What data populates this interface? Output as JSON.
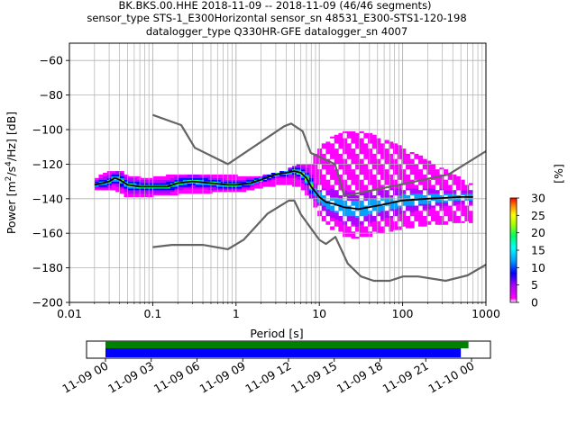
{
  "title": {
    "line1": "BK.BKS.00.HHE   2018-11-09 -- 2018-11-09  (46/46 segments)",
    "line2": "sensor_type STS-1_E300Horizontal sensor_sn 48531_E300-STS1-120-198",
    "line3": "datalogger_type Q330HR-GFE datalogger_sn 4007"
  },
  "chart_data": [
    {
      "type": "heatmap",
      "xlabel": "Period [s]",
      "ylabel": "Power [m²/s⁴/Hz] [dB]",
      "ylabel_parts": {
        "a": "Power [m",
        "b": "2",
        "c": "/s",
        "d": "4",
        "e": "/Hz] [dB]"
      },
      "x_scale": "log",
      "xlim": [
        0.01,
        1000
      ],
      "ylim": [
        -200,
        -50
      ],
      "x_ticks": [
        0.01,
        0.1,
        1,
        10,
        100,
        1000
      ],
      "x_tick_labels": [
        "0.01",
        "0.1",
        "1",
        "10",
        "100",
        "1000"
      ],
      "y_ticks": [
        -200,
        -180,
        -160,
        -140,
        -120,
        -100,
        -80,
        -60
      ],
      "y_tick_labels": [
        "−200",
        "−180",
        "−160",
        "−140",
        "−120",
        "−100",
        "−80",
        "−60"
      ],
      "grid": true,
      "colorbar": {
        "label": "[%]",
        "range": [
          0,
          30
        ],
        "ticks": [
          0,
          5,
          10,
          15,
          20,
          25,
          30
        ],
        "tick_labels": [
          "0",
          "5",
          "10",
          "15",
          "20",
          "25",
          "30"
        ]
      },
      "noise_models": {
        "high": {
          "name": "NHNM",
          "x": [
            0.1,
            0.22,
            0.32,
            0.8,
            3.8,
            4.6,
            6.3,
            7.9,
            15.4,
            20,
            354.8,
            1000
          ],
          "y": [
            -91.5,
            -97.4,
            -110.5,
            -120,
            -98,
            -96.5,
            -101,
            -113.5,
            -120,
            -138.5,
            -126,
            -112.5
          ]
        },
        "low": {
          "name": "NLNM",
          "x": [
            0.1,
            0.17,
            0.4,
            0.8,
            1.24,
            2.4,
            4.3,
            5.0,
            6.0,
            10.0,
            12.0,
            15.6,
            21.9,
            31.6,
            45.0,
            70.0,
            101.0,
            154.0,
            328.0,
            600.0,
            1000.0
          ],
          "y": [
            -168,
            -166.7,
            -166.7,
            -169.2,
            -163.7,
            -148.6,
            -141.1,
            -141.1,
            -149,
            -163.8,
            -166.2,
            -162.1,
            -177.5,
            -185,
            -187.5,
            -187.5,
            -185,
            -185,
            -187.5,
            -184.4,
            -178.2
          ]
        }
      },
      "mode_curve": {
        "name": "mode",
        "x": [
          0.02,
          0.025,
          0.03,
          0.035,
          0.04,
          0.05,
          0.07,
          0.1,
          0.15,
          0.2,
          0.3,
          0.5,
          0.8,
          1.0,
          1.5,
          2.0,
          3.0,
          4.0,
          5.0,
          6.0,
          7.0,
          8.0,
          10.0,
          12.0,
          15.0,
          20.0,
          30.0,
          50.0,
          100.0,
          200.0,
          500.0,
          700.0
        ],
        "y": [
          -132,
          -131,
          -130,
          -128,
          -129,
          -132,
          -133,
          -133,
          -133,
          -131,
          -130,
          -131,
          -132,
          -132,
          -131,
          -129,
          -126,
          -125,
          -124,
          -125,
          -128,
          -133,
          -139,
          -142,
          -143,
          -145,
          -146,
          -144,
          -141,
          -140,
          -139,
          -139
        ]
      },
      "pdf_spread": {
        "x": [
          0.02,
          0.03,
          0.04,
          0.05,
          0.07,
          0.1,
          0.2,
          0.5,
          1.0,
          2.0,
          4.0,
          6.0,
          8.0,
          10.0,
          12.0,
          15.0,
          20.0,
          30.0,
          50.0,
          100.0,
          200.0,
          400.0,
          700.0
        ],
        "upper": [
          -129,
          -124,
          -124,
          -127,
          -128,
          -128,
          -126,
          -126,
          -127,
          -127,
          -124,
          -120,
          -120,
          -110,
          -108,
          -104,
          -101,
          -101,
          -104,
          -110,
          -118,
          -126,
          -132
        ],
        "lower": [
          -135,
          -134,
          -136,
          -139,
          -139,
          -138,
          -137,
          -136,
          -136,
          -133,
          -131,
          -133,
          -140,
          -149,
          -154,
          -158,
          -161,
          -163,
          -160,
          -157,
          -155,
          -154,
          -154
        ]
      }
    },
    {
      "type": "timeline",
      "x_tick_labels": [
        "11-09 00",
        "11-09 03",
        "11-09 06",
        "11-09 09",
        "11-09 12",
        "11-09 15",
        "11-09 18",
        "11-09 21",
        "11-10 00"
      ],
      "start_hour": 0,
      "end_hour": 24,
      "green_bar_hours": [
        0,
        23.8
      ],
      "blue_bar_hours": [
        0,
        23.3
      ]
    }
  ],
  "colors": {
    "noise_model": "#646464",
    "mode": "#000000",
    "grid": "#b0b0b0",
    "timeline_green": "#008000",
    "timeline_blue": "#0000ff"
  }
}
